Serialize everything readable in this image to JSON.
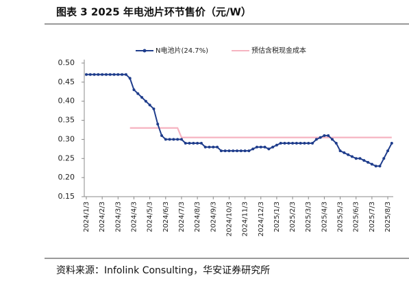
{
  "chart_data": {
    "type": "line",
    "title": "图表 3   2025 年电池片环节售价（元/W）",
    "source": "资料来源：Infolink Consulting，华安证券研究所",
    "categories": [
      "2024/1/3",
      null,
      null,
      null,
      "2024/2/3",
      null,
      null,
      null,
      "2024/3/3",
      null,
      null,
      null,
      "2024/4/3",
      null,
      null,
      null,
      "2024/5/3",
      null,
      null,
      null,
      "2024/6/3",
      null,
      null,
      null,
      "2024/7/3",
      null,
      null,
      null,
      "2024/8/3",
      null,
      null,
      null,
      "2024/9/3",
      null,
      null,
      null,
      "2024/10/3",
      null,
      null,
      null,
      "2024/11/3",
      null,
      null,
      null,
      "2024/12/3",
      null,
      null,
      null,
      "2025/1/3",
      null,
      null,
      null,
      "2025/2/3",
      null,
      null,
      null,
      "2025/3/3",
      null,
      null,
      null,
      "2025/4/3",
      null,
      null,
      null,
      "2025/5/3",
      null,
      null,
      null,
      "2025/6/3",
      null,
      null,
      null,
      "2025/7/3",
      null,
      null,
      null,
      "2025/8/3",
      null
    ],
    "series": [
      {
        "name": "N电池片(24.7%)",
        "color": "#1f3d8c",
        "marker": true,
        "values": [
          0.47,
          0.47,
          0.47,
          0.47,
          0.47,
          0.47,
          0.47,
          0.47,
          0.47,
          0.47,
          0.47,
          0.46,
          0.43,
          0.42,
          0.41,
          0.4,
          0.39,
          0.38,
          0.34,
          0.31,
          0.3,
          0.3,
          0.3,
          0.3,
          0.3,
          0.29,
          0.29,
          0.29,
          0.29,
          0.29,
          0.28,
          0.28,
          0.28,
          0.28,
          0.27,
          0.27,
          0.27,
          0.27,
          0.27,
          0.27,
          0.27,
          0.27,
          0.275,
          0.28,
          0.28,
          0.28,
          0.275,
          0.28,
          0.285,
          0.29,
          0.29,
          0.29,
          0.29,
          0.29,
          0.29,
          0.29,
          0.29,
          0.29,
          0.3,
          0.305,
          0.31,
          0.31,
          0.3,
          0.29,
          0.27,
          0.265,
          0.26,
          0.255,
          0.25,
          0.25,
          0.245,
          0.24,
          0.235,
          0.23,
          0.23,
          0.25,
          0.27,
          0.29
        ]
      },
      {
        "name": "预估含税现金成本",
        "color": "#f6b3c0",
        "marker": false,
        "values": [
          null,
          null,
          null,
          null,
          null,
          null,
          null,
          null,
          null,
          null,
          null,
          0.33,
          0.33,
          0.33,
          0.33,
          0.33,
          0.33,
          0.33,
          0.33,
          0.33,
          0.33,
          0.33,
          0.33,
          0.33,
          0.305,
          0.305,
          0.305,
          0.305,
          0.305,
          0.305,
          0.305,
          0.305,
          0.305,
          0.305,
          0.305,
          0.305,
          0.305,
          0.305,
          0.305,
          0.305,
          0.305,
          0.305,
          0.305,
          0.305,
          0.305,
          0.305,
          0.305,
          0.305,
          0.305,
          0.305,
          0.305,
          0.305,
          0.305,
          0.305,
          0.305,
          0.305,
          0.305,
          0.305,
          0.305,
          0.305,
          0.305,
          0.305,
          0.305,
          0.305,
          0.305,
          0.305,
          0.305,
          0.305,
          0.305,
          0.305,
          0.305,
          0.305,
          0.305,
          0.305,
          0.305,
          0.305,
          0.305,
          0.305
        ]
      }
    ],
    "ylim": [
      0.15,
      0.5
    ],
    "yticks": [
      {
        "value": 0.15,
        "label": "0.15"
      },
      {
        "value": 0.2,
        "label": "0.20"
      },
      {
        "value": 0.25,
        "label": "0.25"
      },
      {
        "value": 0.3,
        "label": "0.30"
      },
      {
        "value": 0.35,
        "label": "0.35"
      },
      {
        "value": 0.4,
        "label": "0.40"
      },
      {
        "value": 0.45,
        "label": "0.45"
      },
      {
        "value": 0.5,
        "label": "0.50"
      }
    ],
    "legend": "top"
  }
}
